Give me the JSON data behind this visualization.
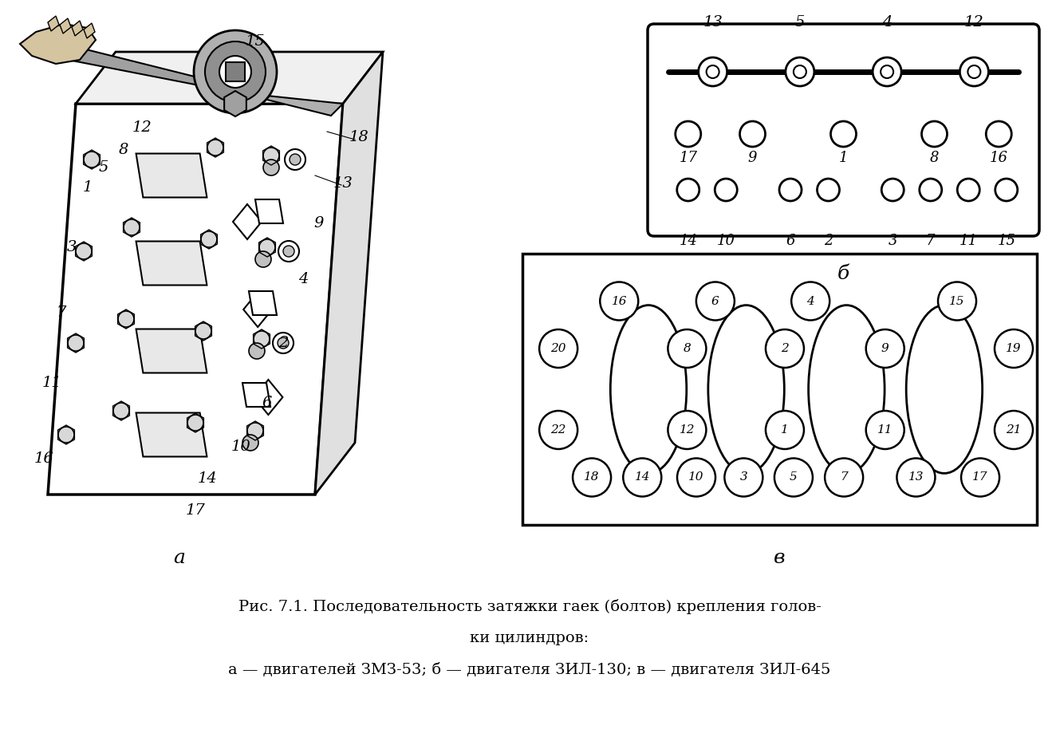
{
  "title_line1": "Рис. 7.1. Последовательность затяжки гаек (болтов) крепления голов-",
  "title_line2": "ки цилиндров:",
  "title_line3": "а — двигателей ЗМЗ-53; б — двигателя ЗИЛ-130; в — двигателя ЗИЛ-645",
  "bg_color": "#ffffff",
  "label_b": "б",
  "label_a": "а",
  "label_v": "в",
  "b_top_labels": [
    "13",
    "5",
    "4",
    "12"
  ],
  "b_mid_labels": [
    "17",
    "9",
    "1",
    "8",
    "16"
  ],
  "b_bot_labels": [
    "14",
    "10",
    "6",
    "2",
    "3",
    "7",
    "11",
    "15"
  ],
  "v_top_nums": [
    "16",
    "6",
    "4",
    "15"
  ],
  "v_mid_upper_nums": [
    "20",
    "8",
    "2",
    "9",
    "19"
  ],
  "v_mid_lower_nums": [
    "22",
    "12",
    "1",
    "11",
    "21"
  ],
  "v_bot_nums": [
    "18",
    "14",
    "10",
    "3",
    "5",
    "7",
    "13",
    "17"
  ]
}
